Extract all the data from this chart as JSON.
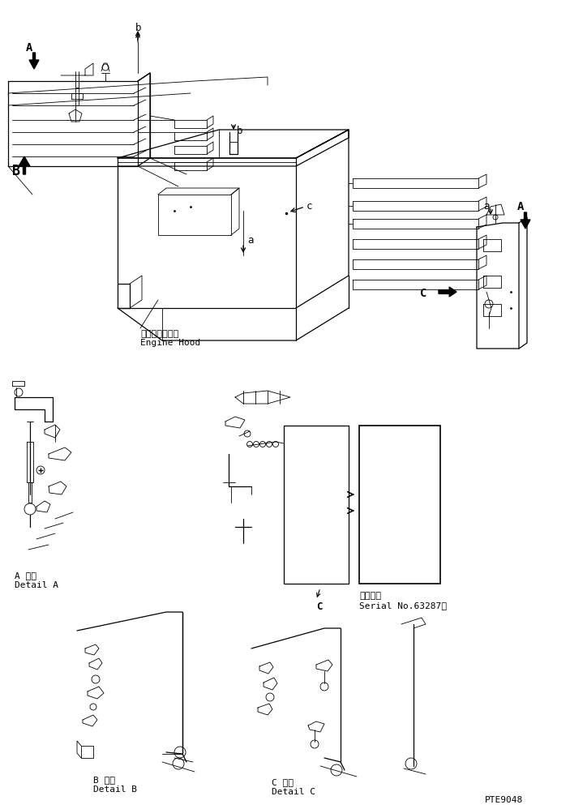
{
  "bg_color": "#ffffff",
  "fig_width": 7.03,
  "fig_height": 9.98,
  "dpi": 100,
  "labels": {
    "engine_hood_jp": "エンジンフード",
    "engine_hood_en": "Engine Hood",
    "detail_a_jp": "A 詳細",
    "detail_a_en": "Detail A",
    "detail_b_jp": "B 詳細",
    "detail_b_en": "Detail B",
    "detail_c_jp": "C 詳細",
    "detail_c_en": "Detail C",
    "serial_jp": "適用号機",
    "serial_en": "Serial No.63287～",
    "part_no": "PTE9048"
  }
}
